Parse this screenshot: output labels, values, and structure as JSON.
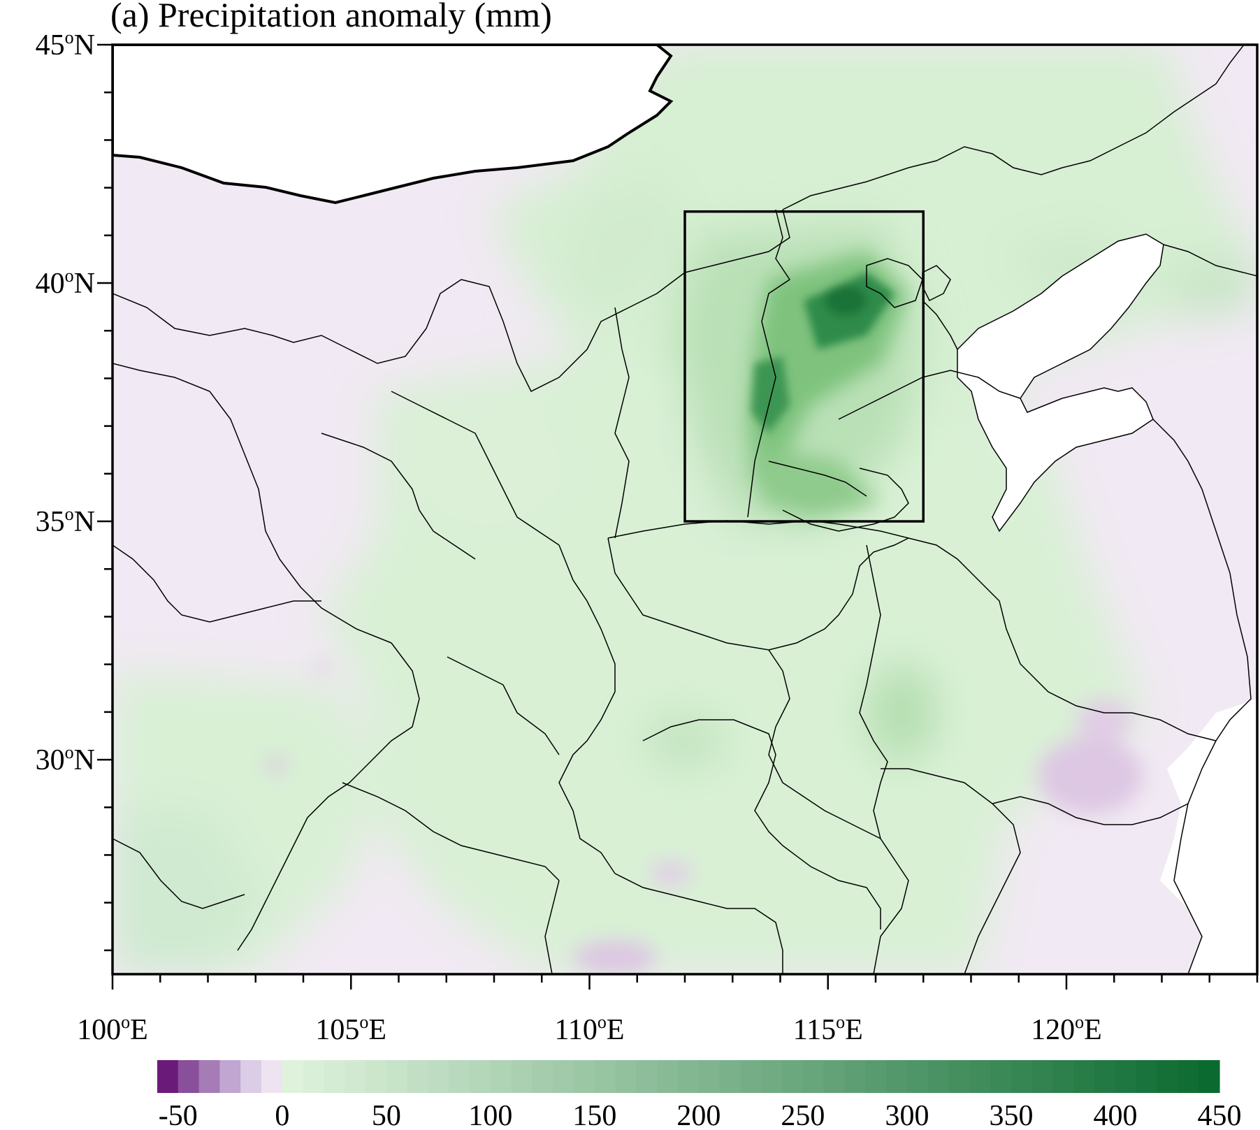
{
  "title": "(a) Precipitation anomaly (mm)",
  "map": {
    "lat_range": [
      25.5,
      45
    ],
    "lon_range": [
      100,
      124
    ],
    "lat_labels": [
      {
        "value": 45,
        "deg": "45",
        "hemi": "N"
      },
      {
        "value": 40,
        "deg": "40",
        "hemi": "N"
      },
      {
        "value": 35,
        "deg": "35",
        "hemi": "N"
      },
      {
        "value": 30,
        "deg": "30",
        "hemi": "N"
      }
    ],
    "lon_labels": [
      {
        "value": 100,
        "deg": "100",
        "hemi": "E"
      },
      {
        "value": 105,
        "deg": "105",
        "hemi": "E"
      },
      {
        "value": 110,
        "deg": "110",
        "hemi": "E"
      },
      {
        "value": 115,
        "deg": "115",
        "hemi": "E"
      },
      {
        "value": 120,
        "deg": "120",
        "hemi": "E"
      }
    ],
    "study_box": {
      "lon_min": 112,
      "lon_max": 117,
      "lat_min": 35,
      "lat_max": 41.5
    },
    "colors": {
      "land_base": "#f1e9f3",
      "frame": "#000000",
      "ocean": "#ffffff"
    }
  },
  "colorbar": {
    "min": -60,
    "max": 450,
    "negative_colors": [
      "#6a1b7a",
      "#8a4f9a",
      "#a57cb6",
      "#c1a6d1",
      "#dccde6",
      "#eee4f1"
    ],
    "positive_start": "#dff2dc",
    "positive_end": "#0b6a30",
    "positive_steps": 45,
    "ticks": [
      -50,
      0,
      50,
      100,
      150,
      200,
      250,
      300,
      350,
      400,
      450
    ],
    "tick_labels": [
      "-50",
      "0",
      "50",
      "100",
      "150",
      "200",
      "250",
      "300",
      "350",
      "400",
      "450"
    ]
  }
}
